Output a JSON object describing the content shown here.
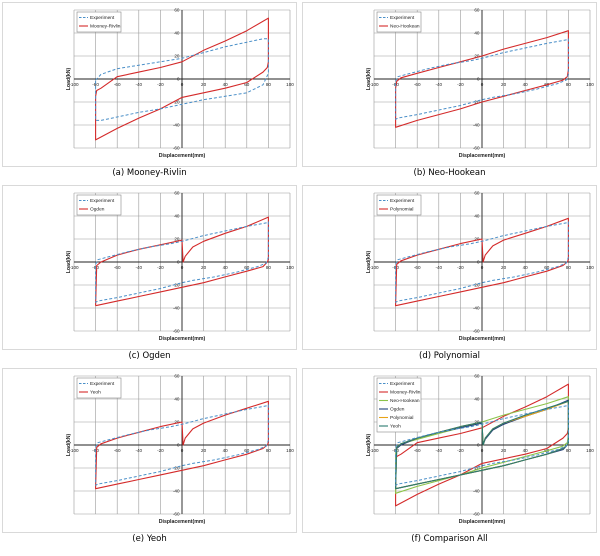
{
  "chart_data": [
    {
      "type": "line",
      "caption": "(a) Mooney-Rivlin",
      "xlabel": "Displacement(mm)",
      "ylabel": "Load(kN)",
      "xlim": [
        -100,
        100
      ],
      "ylim": [
        -60,
        60
      ],
      "xticks": [
        -100,
        -80,
        -60,
        -40,
        -20,
        0,
        20,
        40,
        60,
        80,
        100
      ],
      "yticks": [
        -60,
        -40,
        -20,
        0,
        20,
        40,
        60
      ],
      "grid": true,
      "legend_position": "top-left",
      "series": [
        {
          "name": "Experiment",
          "color": "#4a8fc8",
          "dash": true,
          "x": [
            -80,
            -75,
            -60,
            -40,
            -20,
            0,
            20,
            40,
            60,
            75,
            80,
            80,
            75,
            60,
            40,
            20,
            0,
            -20,
            -40,
            -60,
            -75,
            -80,
            -80
          ],
          "y": [
            -1,
            4,
            9,
            12,
            15,
            18,
            23,
            28,
            32,
            35,
            35,
            5,
            -5,
            -12,
            -15,
            -18,
            -22,
            -26,
            -29,
            -33,
            -36,
            -36,
            -1
          ]
        },
        {
          "name": "Mooney-Rivlin",
          "color": "#d42a2a",
          "dash": false,
          "x": [
            -80,
            -79,
            -75,
            -60,
            -40,
            -20,
            0,
            20,
            40,
            60,
            80,
            80,
            79,
            75,
            60,
            40,
            20,
            0,
            -20,
            -40,
            -60,
            -80,
            -80
          ],
          "y": [
            -15,
            -10,
            -8,
            2,
            6,
            10,
            15,
            25,
            33,
            42,
            53,
            15,
            10,
            6,
            -3,
            -8,
            -12,
            -16,
            -26,
            -34,
            -43,
            -53,
            -15
          ]
        }
      ]
    },
    {
      "type": "line",
      "caption": "(b) Neo-Hookean",
      "xlabel": "Displacement(mm)",
      "ylabel": "Load(kN)",
      "xlim": [
        -100,
        100
      ],
      "ylim": [
        -60,
        60
      ],
      "xticks": [
        -100,
        -80,
        -60,
        -40,
        -20,
        0,
        20,
        40,
        60,
        80,
        100
      ],
      "yticks": [
        -60,
        -40,
        -20,
        0,
        20,
        40,
        60
      ],
      "grid": true,
      "legend_position": "top-left",
      "series": [
        {
          "name": "Experiment",
          "color": "#4a8fc8",
          "dash": true,
          "x": [
            -80,
            -78,
            -70,
            -50,
            -30,
            -10,
            0,
            20,
            40,
            60,
            78,
            80,
            80,
            78,
            70,
            50,
            30,
            10,
            0,
            -20,
            -40,
            -60,
            -78,
            -80,
            -80
          ],
          "y": [
            -2,
            2,
            4,
            9,
            13,
            16,
            18,
            23,
            27,
            31,
            34,
            35,
            4,
            -1,
            -4,
            -9,
            -13,
            -16,
            -18,
            -23,
            -27,
            -31,
            -34,
            -35,
            -2
          ]
        },
        {
          "name": "Neo-Hookean",
          "color": "#d42a2a",
          "dash": false,
          "x": [
            -80,
            -79,
            -75,
            -60,
            -40,
            -20,
            0,
            20,
            40,
            60,
            80,
            80,
            79,
            75,
            60,
            40,
            20,
            0,
            -20,
            -40,
            -60,
            -80,
            -80
          ],
          "y": [
            -8,
            -2,
            1,
            5,
            10,
            15,
            20,
            26,
            31,
            36,
            42,
            8,
            2,
            -1,
            -5,
            -10,
            -15,
            -20,
            -26,
            -31,
            -36,
            -42,
            -8
          ]
        }
      ]
    },
    {
      "type": "line",
      "caption": "(c) Ogden",
      "xlabel": "Displacement(mm)",
      "ylabel": "Load(kN)",
      "xlim": [
        -100,
        100
      ],
      "ylim": [
        -60,
        60
      ],
      "xticks": [
        -100,
        -80,
        -60,
        -40,
        -20,
        0,
        20,
        40,
        60,
        80,
        100
      ],
      "yticks": [
        -60,
        -40,
        -20,
        0,
        20,
        40,
        60
      ],
      "grid": true,
      "legend_position": "top-left",
      "series": [
        {
          "name": "Experiment",
          "color": "#4a8fc8",
          "dash": true,
          "x": [
            -80,
            -78,
            -70,
            -50,
            -30,
            -10,
            0,
            20,
            40,
            60,
            78,
            80,
            80,
            78,
            70,
            50,
            30,
            10,
            0,
            -20,
            -40,
            -60,
            -78,
            -80,
            -80
          ],
          "y": [
            -2,
            2,
            4,
            9,
            13,
            16,
            18,
            23,
            27,
            31,
            34,
            35,
            4,
            -1,
            -4,
            -9,
            -13,
            -16,
            -18,
            -23,
            -27,
            -31,
            -34,
            -35,
            -2
          ]
        },
        {
          "name": "Ogden",
          "color": "#d42a2a",
          "dash": false,
          "x": [
            -80,
            -79,
            -75,
            -60,
            -40,
            -20,
            0,
            1,
            3,
            10,
            20,
            40,
            60,
            80,
            80,
            79,
            75,
            60,
            40,
            20,
            0,
            -20,
            -40,
            -60,
            -80,
            -80
          ],
          "y": [
            -38,
            -3,
            0,
            6,
            11,
            15,
            19,
            0,
            5,
            13,
            18,
            25,
            31,
            39,
            2,
            0,
            -4,
            -8,
            -13,
            -18,
            -22,
            -26,
            -30,
            -34,
            -38,
            -38
          ]
        }
      ]
    },
    {
      "type": "line",
      "caption": "(d) Polynomial",
      "xlabel": "Displacement(mm)",
      "ylabel": "Load(kN)",
      "xlim": [
        -100,
        100
      ],
      "ylim": [
        -60,
        60
      ],
      "xticks": [
        -100,
        -80,
        -60,
        -40,
        -20,
        0,
        20,
        40,
        60,
        80,
        100
      ],
      "yticks": [
        -60,
        -40,
        -20,
        0,
        20,
        40,
        60
      ],
      "grid": true,
      "legend_position": "top-left",
      "series": [
        {
          "name": "Experiment",
          "color": "#4a8fc8",
          "dash": true,
          "x": [
            -80,
            -78,
            -70,
            -50,
            -30,
            -10,
            0,
            20,
            40,
            60,
            78,
            80,
            80,
            78,
            70,
            50,
            30,
            10,
            0,
            -20,
            -40,
            -60,
            -78,
            -80,
            -80
          ],
          "y": [
            -2,
            2,
            4,
            9,
            13,
            16,
            18,
            23,
            27,
            31,
            34,
            35,
            4,
            -1,
            -4,
            -9,
            -13,
            -16,
            -18,
            -23,
            -27,
            -31,
            -34,
            -35,
            -2
          ]
        },
        {
          "name": "Polynomial",
          "color": "#d42a2a",
          "dash": false,
          "x": [
            -80,
            -79,
            -75,
            -60,
            -40,
            -20,
            0,
            1,
            3,
            10,
            20,
            40,
            60,
            80,
            80,
            79,
            75,
            60,
            40,
            20,
            0,
            -20,
            -40,
            -60,
            -80,
            -80
          ],
          "y": [
            -37,
            -2,
            1,
            6,
            11,
            16,
            20,
            0,
            6,
            14,
            19,
            25,
            31,
            38,
            2,
            0,
            -3,
            -8,
            -13,
            -18,
            -22,
            -26,
            -30,
            -34,
            -38,
            -37
          ]
        }
      ]
    },
    {
      "type": "line",
      "caption": "(e) Yeoh",
      "xlabel": "Displacement(mm)",
      "ylabel": "Load(kN)",
      "xlim": [
        -100,
        100
      ],
      "ylim": [
        -60,
        60
      ],
      "xticks": [
        -100,
        -80,
        -60,
        -40,
        -20,
        0,
        20,
        40,
        60,
        80,
        100
      ],
      "yticks": [
        -60,
        -40,
        -20,
        0,
        20,
        40,
        60
      ],
      "grid": true,
      "legend_position": "top-left",
      "series": [
        {
          "name": "Experiment",
          "color": "#4a8fc8",
          "dash": true,
          "x": [
            -80,
            -78,
            -70,
            -50,
            -30,
            -10,
            0,
            20,
            40,
            60,
            78,
            80,
            80,
            78,
            70,
            50,
            30,
            10,
            0,
            -20,
            -40,
            -60,
            -78,
            -80,
            -80
          ],
          "y": [
            -2,
            2,
            4,
            9,
            13,
            16,
            18,
            23,
            27,
            31,
            34,
            35,
            4,
            -1,
            -4,
            -9,
            -13,
            -16,
            -18,
            -23,
            -27,
            -31,
            -34,
            -35,
            -2
          ]
        },
        {
          "name": "Yeoh",
          "color": "#d42a2a",
          "dash": false,
          "x": [
            -80,
            -79,
            -75,
            -60,
            -40,
            -20,
            0,
            1,
            3,
            10,
            20,
            40,
            60,
            80,
            80,
            79,
            75,
            60,
            40,
            20,
            0,
            -20,
            -40,
            -60,
            -80,
            -80
          ],
          "y": [
            -37,
            -2,
            1,
            6,
            11,
            16,
            20,
            0,
            6,
            14,
            19,
            26,
            32,
            38,
            2,
            0,
            -3,
            -8,
            -13,
            -18,
            -22,
            -26,
            -30,
            -34,
            -38,
            -37
          ]
        }
      ]
    },
    {
      "type": "line",
      "caption": "(f) Comparison All",
      "xlabel": "Displacement(mm)",
      "ylabel": "Load(kN)",
      "xlim": [
        -100,
        100
      ],
      "ylim": [
        -60,
        60
      ],
      "xticks": [
        -100,
        -80,
        -60,
        -40,
        -20,
        0,
        20,
        40,
        60,
        80,
        100
      ],
      "yticks": [
        -60,
        -40,
        -20,
        0,
        20,
        40,
        60
      ],
      "grid": true,
      "legend_position": "top-left",
      "series": [
        {
          "name": "Experiment",
          "color": "#4a8fc8",
          "dash": true,
          "x": [
            -80,
            -78,
            -70,
            -50,
            -30,
            -10,
            0,
            20,
            40,
            60,
            78,
            80,
            80,
            78,
            70,
            50,
            30,
            10,
            0,
            -20,
            -40,
            -60,
            -78,
            -80,
            -80
          ],
          "y": [
            -2,
            2,
            4,
            9,
            13,
            16,
            18,
            23,
            27,
            31,
            34,
            35,
            4,
            -1,
            -4,
            -9,
            -13,
            -16,
            -18,
            -23,
            -27,
            -31,
            -34,
            -35,
            -2
          ]
        },
        {
          "name": "Mooney-Rivlin",
          "color": "#d42a2a",
          "dash": false,
          "x": [
            -80,
            -79,
            -75,
            -60,
            -40,
            -20,
            0,
            20,
            40,
            60,
            80,
            80,
            79,
            75,
            60,
            40,
            20,
            0,
            -20,
            -40,
            -60,
            -80,
            -80
          ],
          "y": [
            -15,
            -10,
            -8,
            2,
            6,
            10,
            15,
            25,
            33,
            42,
            53,
            15,
            10,
            6,
            -3,
            -8,
            -12,
            -16,
            -26,
            -34,
            -43,
            -53,
            -15
          ]
        },
        {
          "name": "Neo-Hookean",
          "color": "#8bc34a",
          "dash": false,
          "x": [
            -80,
            -79,
            -75,
            -60,
            -40,
            -20,
            0,
            20,
            40,
            60,
            80,
            80,
            79,
            75,
            60,
            40,
            20,
            0,
            -20,
            -40,
            -60,
            -80,
            -80
          ],
          "y": [
            -8,
            -2,
            1,
            5,
            10,
            15,
            20,
            26,
            31,
            36,
            42,
            8,
            2,
            -1,
            -5,
            -10,
            -15,
            -20,
            -26,
            -31,
            -36,
            -42,
            -8
          ]
        },
        {
          "name": "Ogden",
          "color": "#1f3f7a",
          "dash": false,
          "x": [
            -80,
            -79,
            -75,
            -60,
            -40,
            -20,
            0,
            1,
            3,
            10,
            20,
            40,
            60,
            80,
            80,
            79,
            75,
            60,
            40,
            20,
            0,
            -20,
            -40,
            -60,
            -80,
            -80
          ],
          "y": [
            -38,
            -3,
            0,
            6,
            11,
            15,
            19,
            0,
            5,
            13,
            18,
            25,
            31,
            39,
            2,
            0,
            -4,
            -8,
            -13,
            -18,
            -22,
            -26,
            -30,
            -34,
            -38,
            -38
          ]
        },
        {
          "name": "Polynomial",
          "color": "#e8a317",
          "dash": false,
          "x": [
            -80,
            -79,
            -75,
            -60,
            -40,
            -20,
            0,
            1,
            3,
            10,
            20,
            40,
            60,
            80,
            80,
            79,
            75,
            60,
            40,
            20,
            0,
            -20,
            -40,
            -60,
            -80,
            -80
          ],
          "y": [
            -37,
            -2,
            1,
            6,
            11,
            16,
            20,
            0,
            6,
            14,
            19,
            25,
            31,
            38,
            2,
            0,
            -3,
            -8,
            -13,
            -18,
            -22,
            -26,
            -30,
            -34,
            -38,
            -37
          ]
        },
        {
          "name": "Yeoh",
          "color": "#2a7a6f",
          "dash": false,
          "x": [
            -80,
            -79,
            -75,
            -60,
            -40,
            -20,
            0,
            1,
            3,
            10,
            20,
            40,
            60,
            80,
            80,
            79,
            75,
            60,
            40,
            20,
            0,
            -20,
            -40,
            -60,
            -80,
            -80
          ],
          "y": [
            -37,
            -2,
            1,
            6,
            11,
            16,
            20,
            0,
            6,
            14,
            19,
            26,
            32,
            38,
            2,
            0,
            -3,
            -8,
            -13,
            -18,
            -22,
            -26,
            -30,
            -34,
            -38,
            -37
          ]
        }
      ]
    }
  ]
}
